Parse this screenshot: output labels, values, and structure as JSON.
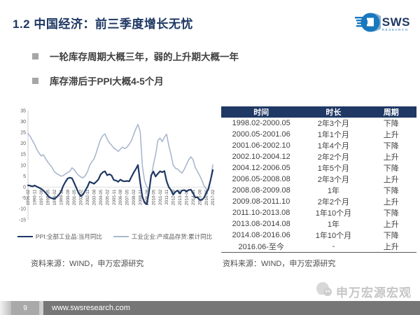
{
  "header": {
    "title": "1.2 中国经济：前三季度增长无忧",
    "logo_text": "SWS",
    "logo_subtext": "RESEARCH",
    "logo_icon": "sws-globe-icon"
  },
  "bullets": [
    "一轮库存周期大概三年，弱的上升期大概一年",
    "库存滞后于PPI大概4-5个月"
  ],
  "chart_data": {
    "type": "line",
    "title": "",
    "xlabel": "",
    "ylabel": "",
    "ylim": [
      -15,
      35
    ],
    "yticks": [
      35,
      30,
      25,
      20,
      15,
      10,
      5,
      0,
      -5,
      -10,
      -15
    ],
    "grid": false,
    "legend_position": "bottom",
    "x_range": [
      "1996-02",
      "2017-02"
    ],
    "x_step_months": 3,
    "x_tick_labels": [
      "1996-02",
      "1996-11",
      "1997-08",
      "1998-05",
      "1999-02",
      "1999-11",
      "2000-08",
      "2001-05",
      "2002-02",
      "2002-11",
      "2003-08",
      "2004-05",
      "2005-02",
      "2005-11",
      "2006-08",
      "2007-05",
      "2008-02",
      "2008-11",
      "2009-08",
      "2010-05",
      "2011-02",
      "2011-11",
      "2012-08",
      "2013-05",
      "2014-02",
      "2014-11",
      "2015-08",
      "2016-05",
      "2017-02"
    ],
    "series": [
      {
        "name": "PPI:全部工业品:当月同比",
        "color": "#1F3864",
        "stroke_width": 2.2,
        "values": [
          0.8,
          0.6,
          0.3,
          0.7,
          0.2,
          -0.3,
          -0.8,
          -1.6,
          -2.6,
          -3.9,
          -4.8,
          -5.2,
          -5.4,
          -4.6,
          -3.6,
          -2.2,
          0.5,
          2.3,
          3.9,
          4.3,
          4.0,
          1.9,
          -0.4,
          -2.8,
          -4.2,
          -3.4,
          -1.7,
          0.1,
          2.4,
          2.0,
          1.5,
          2.4,
          3.5,
          5.7,
          6.8,
          7.2,
          5.4,
          5.9,
          5.3,
          3.2,
          3.0,
          2.4,
          3.4,
          2.8,
          2.6,
          2.8,
          2.6,
          4.6,
          6.6,
          8.2,
          10.1,
          2.0,
          -4.5,
          -7.2,
          -7.9,
          -2.1,
          5.4,
          7.1,
          4.8,
          6.1,
          7.2,
          6.8,
          7.3,
          2.7,
          0.0,
          -1.4,
          -3.5,
          -2.2,
          -1.6,
          -2.9,
          -1.6,
          -1.4,
          -2.0,
          -1.4,
          -1.2,
          -2.7,
          -4.8,
          -4.6,
          -5.9,
          -5.9,
          -4.9,
          -2.8,
          -0.8,
          3.3,
          7.8
        ]
      },
      {
        "name": "工业企业:产成品存货:累计同比",
        "color": "#A9B8CE",
        "stroke_width": 1.6,
        "values": [
          24.6,
          23.2,
          21.3,
          19.6,
          17.2,
          15.6,
          14.2,
          14.8,
          13.0,
          11.4,
          10.2,
          8.8,
          7.0,
          6.2,
          5.6,
          5.0,
          5.2,
          6.0,
          6.6,
          7.2,
          8.8,
          8.0,
          6.4,
          5.4,
          4.6,
          4.2,
          5.2,
          7.0,
          9.8,
          11.6,
          12.8,
          15.6,
          18.9,
          21.8,
          23.6,
          24.3,
          22.0,
          20.2,
          19.2,
          17.8,
          17.2,
          16.3,
          17.4,
          18.3,
          17.6,
          18.2,
          19.6,
          21.2,
          24.0,
          26.6,
          28.7,
          25.4,
          9.6,
          2.8,
          0.2,
          -1.4,
          4.2,
          10.2,
          14.8,
          21.2,
          22.4,
          20.8,
          22.8,
          24.2,
          19.0,
          14.8,
          10.0,
          8.6,
          8.2,
          7.2,
          6.4,
          8.0,
          10.2,
          12.4,
          13.8,
          12.6,
          9.0,
          7.2,
          5.4,
          3.2,
          0.6,
          -0.9,
          -1.6,
          3.1,
          10.2
        ]
      }
    ]
  },
  "table": {
    "headers": [
      "时间",
      "时长",
      "周期"
    ],
    "rows": [
      [
        "1998.02-2000.05",
        "2年3个月",
        "下降"
      ],
      [
        "2000.05-2001.06",
        "1年1个月",
        "上升"
      ],
      [
        "2001.06-2002.10",
        "1年4个月",
        "下降"
      ],
      [
        "2002.10-2004.12",
        "2年2个月",
        "上升"
      ],
      [
        "2004.12-2006.05",
        "1年5个月",
        "下降"
      ],
      [
        "2006.05-2008.08",
        "2年3个月",
        "上升"
      ],
      [
        "2008.08-2009.08",
        "1年",
        "下降"
      ],
      [
        "2009.08-2011.10",
        "2年2个月",
        "上升"
      ],
      [
        "2011.10-2013.08",
        "1年10个月",
        "下降"
      ],
      [
        "2013.08-2014.08",
        "1年",
        "上升"
      ],
      [
        "2014.08-2016.06",
        "1年10个月",
        "下降"
      ],
      [
        "2016.06-至今",
        "-",
        "上升"
      ]
    ]
  },
  "sources": {
    "left": "资料来源：WIND，申万宏源研究",
    "right": "资料来源：WIND，申万宏源研究"
  },
  "watermark": {
    "text": "申万宏源宏观",
    "icon": "wechat-account-icon"
  },
  "footer": {
    "page_number": "9",
    "url": "www.swsresearch.com"
  },
  "colors": {
    "accent_navy": "#1F3864",
    "logo_blue": "#1878BE",
    "series_dark": "#1F3864",
    "series_light": "#A9B8CE",
    "table_header_bg": "#1F3864",
    "footer_bar": "#767676",
    "bullet_square": "#A6A6A6",
    "watermark_gray": "#C6C6C6"
  }
}
